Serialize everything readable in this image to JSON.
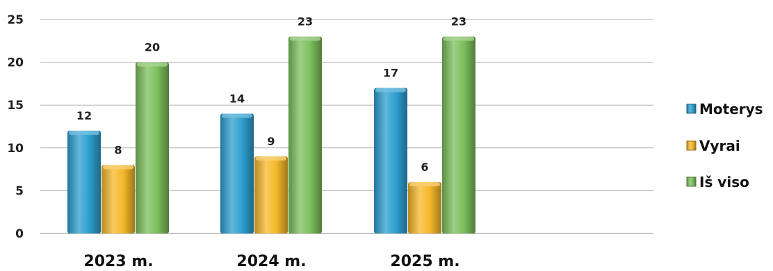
{
  "chart_data": {
    "type": "bar",
    "categories": [
      "2023 m.",
      "2024 m.",
      "2025 m."
    ],
    "series": [
      {
        "name": "Moterys",
        "values": [
          12,
          14,
          17
        ],
        "color": "#2e9fd0"
      },
      {
        "name": "Vyrai",
        "values": [
          8,
          9,
          6
        ],
        "color": "#f5b82a"
      },
      {
        "name": "Iš viso",
        "values": [
          20,
          23,
          23
        ],
        "color": "#7cbf5c"
      }
    ],
    "ylim": [
      0,
      25
    ],
    "yticks": [
      0,
      5,
      10,
      15,
      20,
      25
    ],
    "grid": true,
    "legend": "right"
  }
}
